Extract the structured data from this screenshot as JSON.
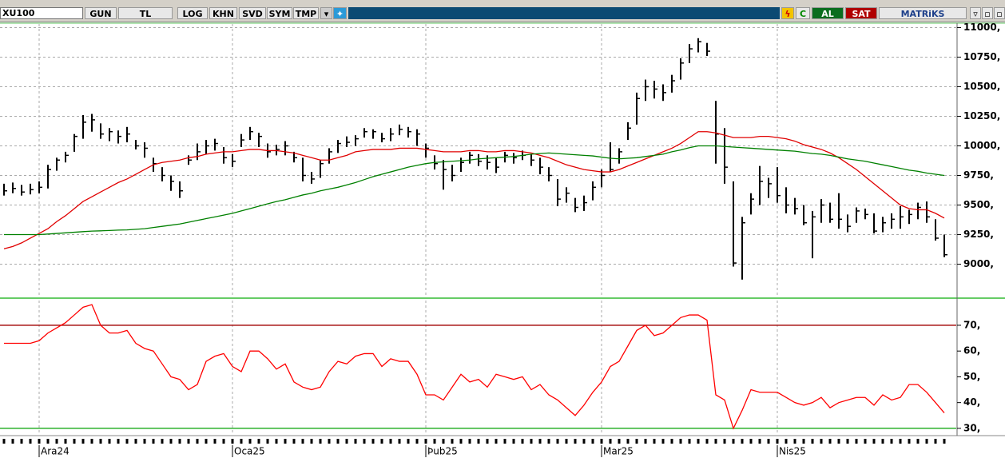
{
  "toolbar": {
    "symbol": "XU100",
    "buttons": [
      "GUN",
      "TL",
      "LOG",
      "KHN",
      "SVD",
      "SYM",
      "TMP"
    ],
    "c": "C",
    "buy": "AL",
    "sell": "SAT",
    "brand": "MATRiKS"
  },
  "chart_data": [
    {
      "type": "ohlc",
      "categories": [
        null,
        null,
        null,
        null,
        "Ara24",
        null,
        null,
        null,
        null,
        null,
        null,
        null,
        null,
        null,
        null,
        null,
        null,
        null,
        null,
        null,
        null,
        null,
        null,
        null,
        null,
        null,
        "Oca25",
        null,
        null,
        null,
        null,
        null,
        null,
        null,
        null,
        null,
        null,
        null,
        null,
        null,
        null,
        null,
        null,
        null,
        null,
        null,
        null,
        null,
        "Þub25",
        null,
        null,
        null,
        null,
        null,
        null,
        null,
        null,
        null,
        null,
        null,
        null,
        null,
        null,
        null,
        null,
        null,
        null,
        null,
        "Mar25",
        null,
        null,
        null,
        null,
        null,
        null,
        null,
        null,
        null,
        null,
        null,
        null,
        null,
        null,
        null,
        null,
        null,
        null,
        null,
        "Nis25",
        null,
        null,
        null,
        null,
        null,
        null,
        null,
        null,
        null,
        null,
        null,
        null,
        null,
        null,
        null,
        null,
        null,
        null,
        null
      ],
      "high": [
        9680,
        9690,
        9670,
        9680,
        9700,
        9840,
        9900,
        9950,
        10100,
        10260,
        10270,
        10190,
        10150,
        10130,
        10160,
        10050,
        10030,
        9900,
        9820,
        9750,
        9700,
        9920,
        10020,
        10050,
        10060,
        9990,
        9930,
        10100,
        10160,
        10110,
        10020,
        10010,
        10040,
        9950,
        9900,
        9780,
        9880,
        9980,
        10050,
        10080,
        10090,
        10150,
        10140,
        10110,
        10150,
        10180,
        10160,
        10140,
        10020,
        9920,
        9880,
        9840,
        9900,
        9950,
        9930,
        9920,
        9900,
        9950,
        9940,
        9960,
        9930,
        9900,
        9820,
        9720,
        9650,
        9560,
        9580,
        9700,
        9800,
        10030,
        9980,
        10200,
        10450,
        10560,
        10550,
        10520,
        10600,
        10740,
        10860,
        10910,
        10870,
        10380,
        10150,
        9700,
        9400,
        9600,
        9830,
        9730,
        9820,
        9650,
        9560,
        9500,
        9450,
        9550,
        9520,
        9600,
        9420,
        9480,
        9470,
        9430,
        9400,
        9430,
        9490,
        9460,
        9520,
        9530,
        9380,
        9250
      ],
      "low": [
        9580,
        9600,
        9580,
        9590,
        9600,
        9640,
        9790,
        9860,
        9950,
        10060,
        10120,
        10060,
        10040,
        10020,
        10030,
        9970,
        9900,
        9780,
        9700,
        9620,
        9560,
        9840,
        9880,
        9930,
        9960,
        9850,
        9820,
        9990,
        10050,
        9990,
        9900,
        9920,
        9920,
        9860,
        9700,
        9680,
        9730,
        9850,
        9940,
        9990,
        10000,
        10070,
        10060,
        10030,
        10040,
        10090,
        10070,
        10000,
        9900,
        9800,
        9630,
        9700,
        9780,
        9850,
        9830,
        9800,
        9770,
        9860,
        9850,
        9880,
        9830,
        9760,
        9700,
        9490,
        9520,
        9440,
        9450,
        9540,
        9650,
        9780,
        9850,
        10050,
        10180,
        10380,
        10400,
        10380,
        10450,
        10560,
        10700,
        10790,
        10760,
        9850,
        9680,
        8980,
        8870,
        9420,
        9500,
        9560,
        9520,
        9430,
        9420,
        9330,
        9050,
        9350,
        9350,
        9300,
        9270,
        9350,
        9380,
        9260,
        9270,
        9300,
        9300,
        9340,
        9380,
        9350,
        9200,
        9060
      ],
      "close": [
        9620,
        9640,
        9610,
        9630,
        9650,
        9800,
        9880,
        9920,
        10080,
        10200,
        10220,
        10100,
        10120,
        10080,
        10100,
        10000,
        9980,
        9850,
        9750,
        9700,
        9620,
        9880,
        9950,
        10000,
        10020,
        9900,
        9870,
        10050,
        10120,
        10080,
        9950,
        9970,
        10000,
        9900,
        9750,
        9720,
        9850,
        9950,
        10020,
        10030,
        10060,
        10120,
        10120,
        10060,
        10100,
        10140,
        10120,
        10100,
        9980,
        9850,
        9800,
        9750,
        9860,
        9920,
        9870,
        9860,
        9820,
        9920,
        9900,
        9920,
        9880,
        9820,
        9750,
        9550,
        9600,
        9480,
        9520,
        9650,
        9750,
        9800,
        9950,
        10150,
        10400,
        10500,
        10480,
        10450,
        10550,
        10700,
        10820,
        10880,
        10800,
        10100,
        9820,
        9010,
        9350,
        9550,
        9700,
        9680,
        9580,
        9500,
        9470,
        9350,
        9400,
        9500,
        9380,
        9380,
        9320,
        9450,
        9420,
        9280,
        9350,
        9380,
        9400,
        9420,
        9480,
        9400,
        9220,
        9080
      ],
      "color": "#000000",
      "lines": [
        {
          "color": "#e00000",
          "values": [
            9130,
            9150,
            9180,
            9220,
            9260,
            9300,
            9360,
            9410,
            9470,
            9530,
            9570,
            9610,
            9650,
            9690,
            9720,
            9760,
            9800,
            9840,
            9860,
            9870,
            9880,
            9900,
            9910,
            9930,
            9940,
            9950,
            9950,
            9960,
            9970,
            9970,
            9960,
            9960,
            9950,
            9940,
            9920,
            9900,
            9880,
            9880,
            9900,
            9920,
            9950,
            9960,
            9970,
            9970,
            9970,
            9980,
            9980,
            9980,
            9970,
            9960,
            9950,
            9950,
            9950,
            9960,
            9960,
            9950,
            9950,
            9960,
            9960,
            9950,
            9940,
            9920,
            9900,
            9870,
            9840,
            9820,
            9800,
            9790,
            9780,
            9780,
            9800,
            9830,
            9860,
            9890,
            9920,
            9950,
            9980,
            10020,
            10070,
            10120,
            10120,
            10110,
            10090,
            10070,
            10070,
            10070,
            10080,
            10080,
            10070,
            10060,
            10040,
            10010,
            9990,
            9970,
            9940,
            9900,
            9850,
            9800,
            9740,
            9680,
            9620,
            9560,
            9500,
            9470,
            9460,
            9460,
            9430,
            9390
          ]
        },
        {
          "color": "#008000",
          "values": [
            9250,
            9250,
            9250,
            9250,
            9250,
            9255,
            9260,
            9265,
            9270,
            9275,
            9280,
            9282,
            9285,
            9288,
            9290,
            9295,
            9300,
            9310,
            9320,
            9330,
            9340,
            9355,
            9370,
            9385,
            9400,
            9415,
            9430,
            9450,
            9470,
            9490,
            9510,
            9530,
            9545,
            9565,
            9585,
            9600,
            9620,
            9635,
            9650,
            9670,
            9690,
            9715,
            9740,
            9760,
            9780,
            9800,
            9820,
            9835,
            9850,
            9860,
            9865,
            9870,
            9875,
            9880,
            9890,
            9895,
            9900,
            9905,
            9910,
            9920,
            9930,
            9935,
            9940,
            9935,
            9930,
            9925,
            9920,
            9915,
            9905,
            9895,
            9890,
            9895,
            9900,
            9910,
            9920,
            9930,
            9950,
            9965,
            9985,
            10000,
            10000,
            10000,
            9995,
            9990,
            9985,
            9980,
            9975,
            9970,
            9965,
            9960,
            9955,
            9945,
            9935,
            9930,
            9920,
            9905,
            9890,
            9880,
            9870,
            9855,
            9840,
            9825,
            9810,
            9795,
            9785,
            9770,
            9760,
            9750
          ]
        }
      ],
      "ylim": [
        8720,
        11030
      ],
      "yticks": [
        {
          "value": 9000,
          "label": "9000,"
        },
        {
          "value": 9250,
          "label": "9250,"
        },
        {
          "value": 9500,
          "label": "9500,"
        },
        {
          "value": 9750,
          "label": "9750,"
        },
        {
          "value": 10000,
          "label": "10000,"
        },
        {
          "value": 10250,
          "label": "10250,"
        },
        {
          "value": 10500,
          "label": "10500,"
        },
        {
          "value": 10750,
          "label": "10750,"
        },
        {
          "value": 11000,
          "label": "11000,"
        }
      ],
      "grid": true
    },
    {
      "type": "line",
      "values": [
        63,
        63,
        63,
        63,
        64,
        67,
        69,
        71,
        74,
        77,
        78,
        70,
        67,
        67,
        68,
        63,
        61,
        60,
        55,
        50,
        49,
        45,
        47,
        56,
        58,
        59,
        54,
        52,
        60,
        60,
        57,
        53,
        55,
        48,
        46,
        45,
        46,
        52,
        56,
        55,
        58,
        59,
        59,
        54,
        57,
        56,
        56,
        51,
        43,
        43,
        41,
        46,
        51,
        48,
        49,
        46,
        51,
        50,
        49,
        50,
        45,
        47,
        43,
        41,
        38,
        35,
        39,
        44,
        48,
        54,
        56,
        62,
        68,
        70,
        66,
        67,
        70,
        73,
        74,
        74,
        72,
        43,
        41,
        30,
        37,
        45,
        44,
        44,
        44,
        42,
        40,
        39,
        40,
        42,
        38,
        40,
        41,
        42,
        42,
        39,
        43,
        41,
        42,
        47,
        47,
        44,
        40,
        36
      ],
      "color": "#ff0000",
      "ylim": [
        27.8,
        79.6
      ],
      "yticks": [
        {
          "value": 30,
          "label": "30,"
        },
        {
          "value": 40,
          "label": "40,"
        },
        {
          "value": 50,
          "label": "50,"
        },
        {
          "value": 60,
          "label": "60,"
        },
        {
          "value": 70,
          "label": "70,"
        }
      ],
      "hlines": [
        {
          "value": 70,
          "color": "#a00000"
        },
        {
          "value": 30,
          "color": "#00a000"
        }
      ]
    }
  ]
}
